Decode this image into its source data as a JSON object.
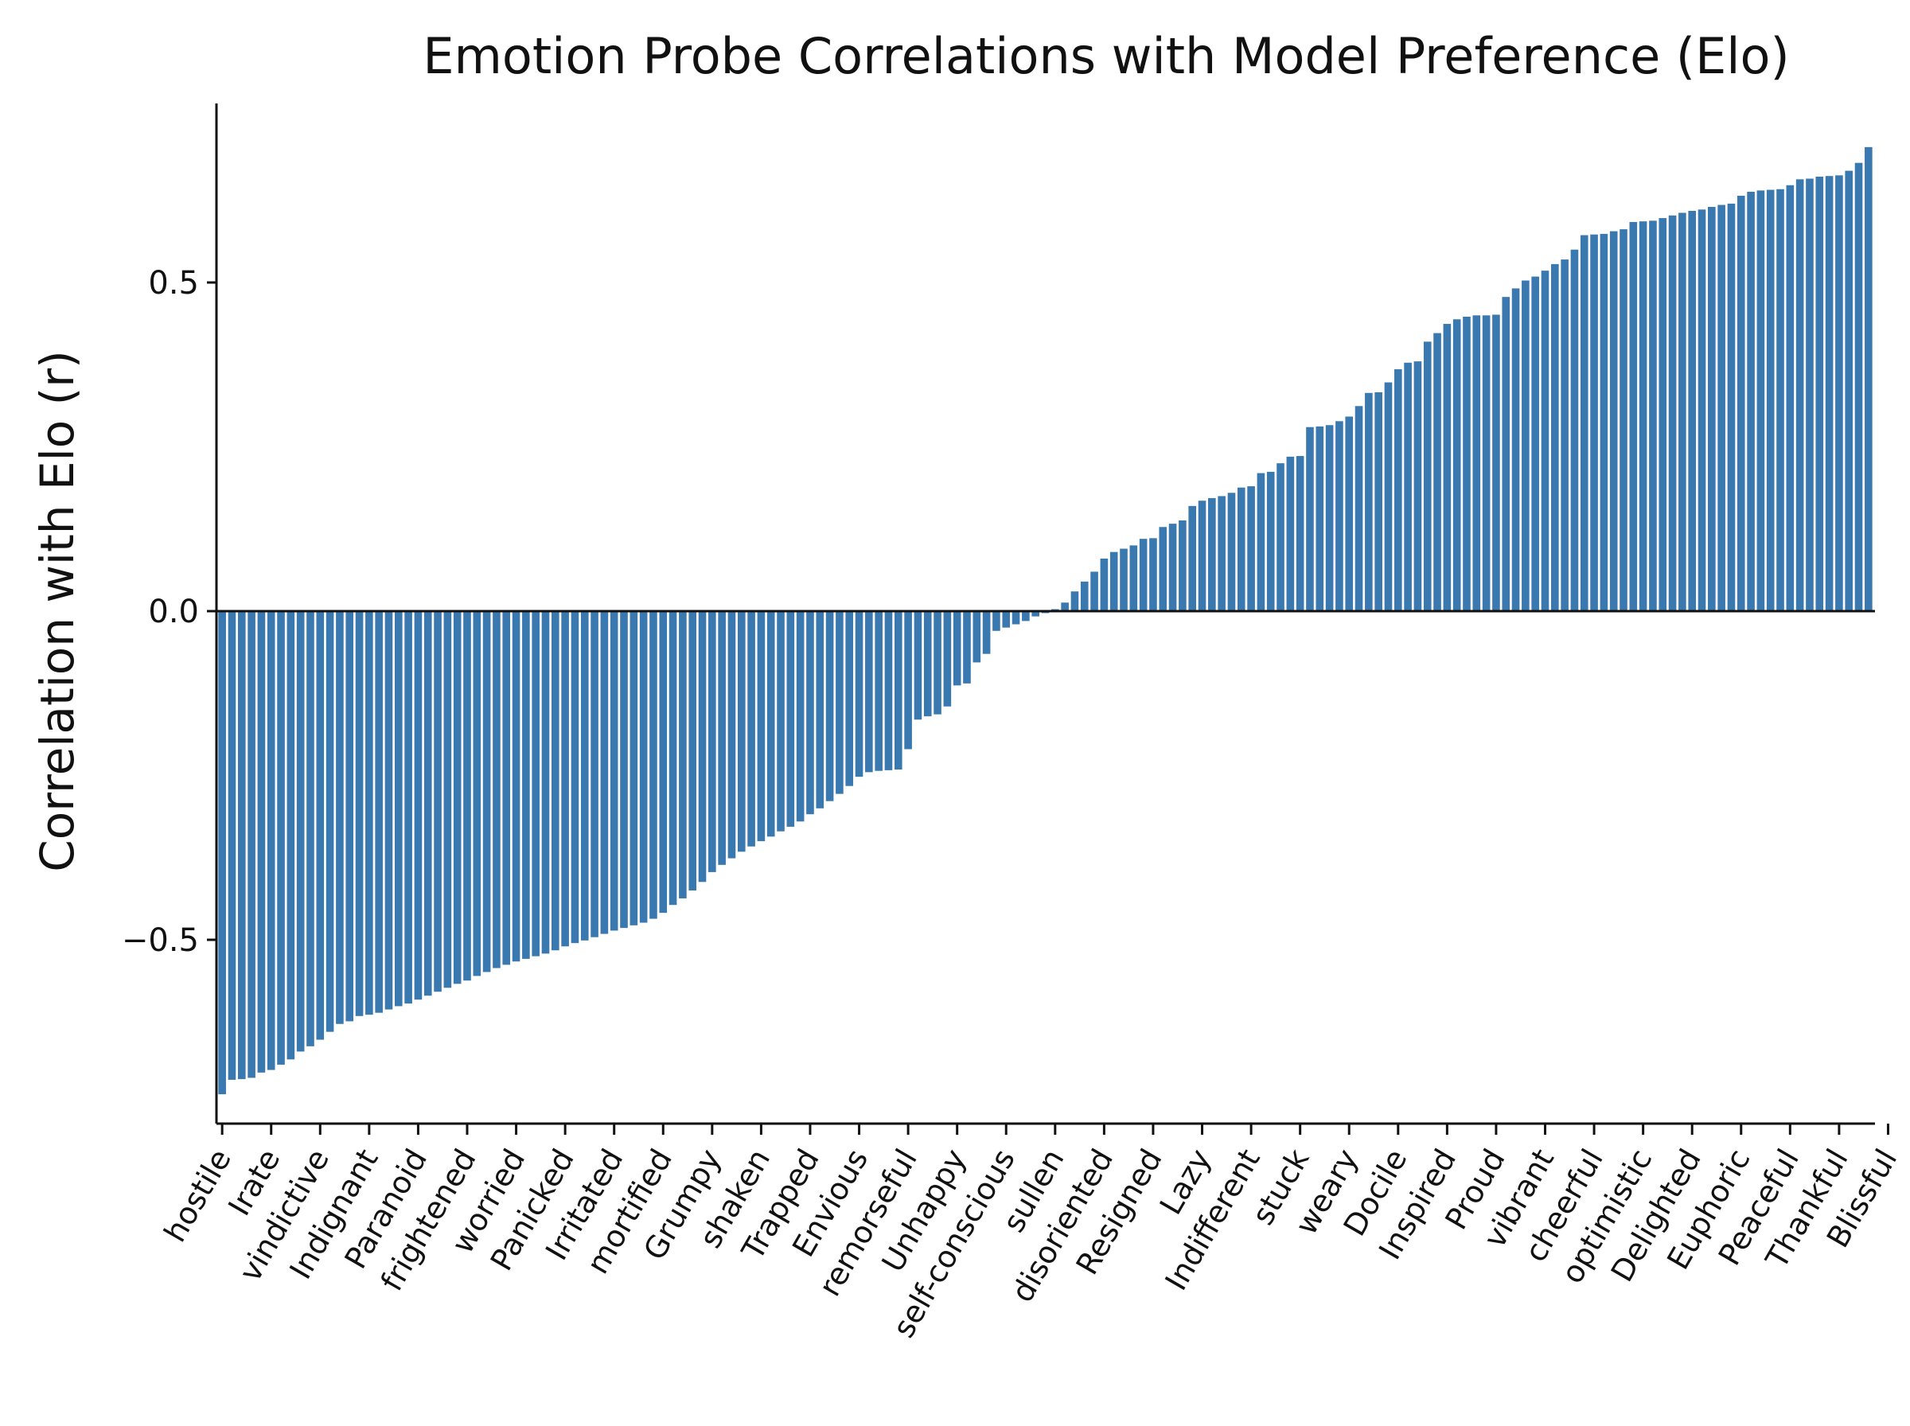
{
  "chart_data": {
    "type": "bar",
    "title": "Emotion Probe Correlations with Model Preference (Elo)",
    "xlabel": "",
    "ylabel": "Correlation with Elo (r)",
    "ylim": [
      -0.8,
      0.8
    ],
    "yticks": [
      0.5,
      0.0,
      -0.5
    ],
    "ytick_labels": [
      "0.5",
      "0.0",
      "−0.5"
    ],
    "xticklabels": [
      "hostile",
      "Irate",
      "vindictive",
      "Indignant",
      "Paranoid",
      "frightened",
      "worried",
      "Panicked",
      "Irritated",
      "mortified",
      "Grumpy",
      "shaken",
      "Trapped",
      "Envious",
      "remorseful",
      "Unhappy",
      "self-conscious",
      "sullen",
      "disoriented",
      "Resigned",
      "Lazy",
      "Indifferent",
      "stuck",
      "weary",
      "Docile",
      "Inspired",
      "Proud",
      "vibrant",
      "cheerful",
      "optimistic",
      "Delighted",
      "Euphoric",
      "Peaceful",
      "Thankful",
      "Blissful"
    ],
    "tick_every": 5,
    "bar_color": "#3a78b0",
    "grid": false,
    "legend": "none",
    "values": [
      -0.735,
      -0.713,
      -0.712,
      -0.71,
      -0.702,
      -0.698,
      -0.69,
      -0.682,
      -0.67,
      -0.662,
      -0.652,
      -0.64,
      -0.628,
      -0.624,
      -0.616,
      -0.614,
      -0.611,
      -0.606,
      -0.601,
      -0.597,
      -0.591,
      -0.585,
      -0.579,
      -0.573,
      -0.567,
      -0.562,
      -0.555,
      -0.549,
      -0.543,
      -0.538,
      -0.533,
      -0.529,
      -0.525,
      -0.521,
      -0.516,
      -0.51,
      -0.505,
      -0.501,
      -0.496,
      -0.491,
      -0.486,
      -0.482,
      -0.478,
      -0.474,
      -0.468,
      -0.459,
      -0.447,
      -0.437,
      -0.425,
      -0.412,
      -0.397,
      -0.386,
      -0.376,
      -0.366,
      -0.358,
      -0.35,
      -0.343,
      -0.335,
      -0.328,
      -0.32,
      -0.309,
      -0.3,
      -0.289,
      -0.278,
      -0.266,
      -0.252,
      -0.245,
      -0.243,
      -0.242,
      -0.241,
      -0.21,
      -0.165,
      -0.16,
      -0.157,
      -0.145,
      -0.113,
      -0.11,
      -0.078,
      -0.065,
      -0.03,
      -0.025,
      -0.02,
      -0.015,
      -0.008,
      -0.003,
      0.003,
      0.013,
      0.03,
      0.045,
      0.06,
      0.08,
      0.09,
      0.095,
      0.1,
      0.11,
      0.111,
      0.128,
      0.133,
      0.138,
      0.16,
      0.168,
      0.172,
      0.175,
      0.18,
      0.188,
      0.19,
      0.21,
      0.212,
      0.225,
      0.235,
      0.236,
      0.28,
      0.281,
      0.283,
      0.289,
      0.296,
      0.312,
      0.332,
      0.333,
      0.348,
      0.368,
      0.378,
      0.38,
      0.41,
      0.423,
      0.437,
      0.444,
      0.448,
      0.45,
      0.45,
      0.451,
      0.478,
      0.491,
      0.503,
      0.509,
      0.518,
      0.528,
      0.535,
      0.55,
      0.572,
      0.573,
      0.574,
      0.578,
      0.581,
      0.592,
      0.593,
      0.594,
      0.598,
      0.602,
      0.606,
      0.609,
      0.611,
      0.615,
      0.618,
      0.62,
      0.632,
      0.638,
      0.64,
      0.641,
      0.642,
      0.648,
      0.657,
      0.658,
      0.661,
      0.662,
      0.663,
      0.67,
      0.682,
      0.706
    ]
  }
}
